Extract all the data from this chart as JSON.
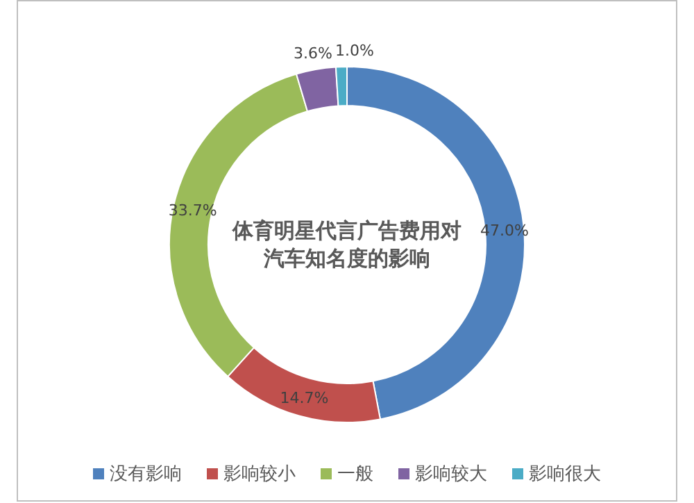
{
  "chart_data": {
    "type": "donut",
    "title": "体育明星代言广告费用对汽车知名度的影响",
    "categories": [
      "没有影响",
      "影响较小",
      "一般",
      "影响较大",
      "影响很大"
    ],
    "values": [
      47.0,
      14.7,
      33.7,
      3.6,
      1.0
    ],
    "colors": [
      "#4f81bd",
      "#c0504d",
      "#9bbb59",
      "#8064a2",
      "#4bacc6"
    ],
    "value_labels": [
      "47.0%",
      "14.7%",
      "33.7%",
      "3.6%",
      "1.0%"
    ],
    "legend": "bottom"
  }
}
